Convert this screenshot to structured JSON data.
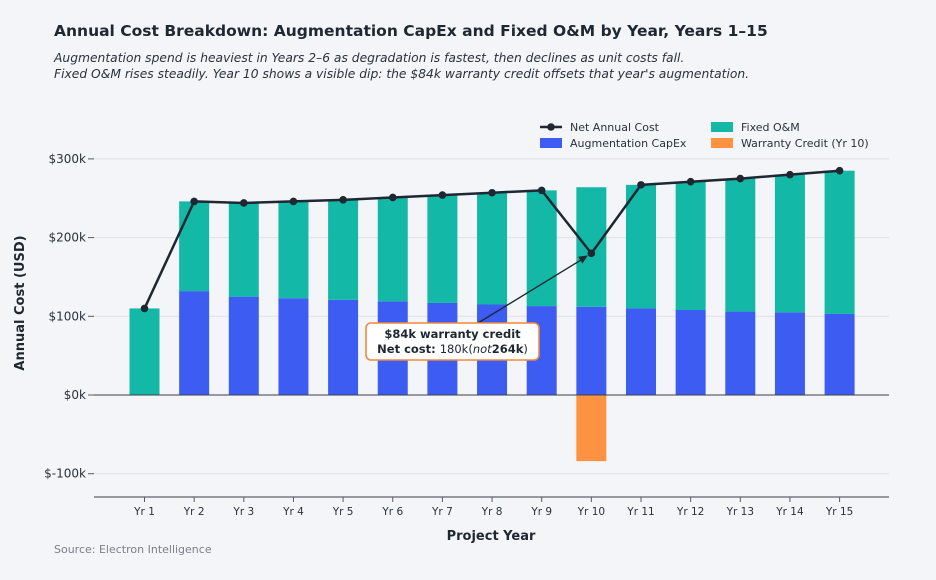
{
  "chart_data": {
    "type": "bar",
    "title": "Annual Cost Breakdown: Augmentation CapEx and Fixed O&M by Year, Years 1–15",
    "subtitle_lines": [
      "Augmentation spend is heaviest in Years 2–6 as degradation is fastest, then declines as unit costs fall.",
      "Fixed O&M rises steadily. Year 10 shows a visible dip: the $84k warranty credit offsets that year's augmentation."
    ],
    "xlabel": "Project Year",
    "ylabel": "Annual Cost (USD)",
    "ylim": [
      -130000,
      335000
    ],
    "yticks": [
      -100000,
      0,
      100000,
      200000,
      300000
    ],
    "ytick_labels": [
      "$-100k",
      "$0k",
      "$100k",
      "$200k",
      "$300k"
    ],
    "grid": true,
    "legend_position": "top-right",
    "categories": [
      "Yr 1",
      "Yr 2",
      "Yr 3",
      "Yr 4",
      "Yr 5",
      "Yr 6",
      "Yr 7",
      "Yr 8",
      "Yr 9",
      "Yr 10",
      "Yr 11",
      "Yr 12",
      "Yr 13",
      "Yr 14",
      "Yr 15"
    ],
    "series": [
      {
        "name": "Augmentation CapEx",
        "kind": "stacked-bar",
        "color": "#3d5df2",
        "values": [
          0,
          132000,
          125000,
          123000,
          121000,
          119000,
          117000,
          115000,
          113000,
          112000,
          110000,
          108000,
          106000,
          105000,
          103000
        ]
      },
      {
        "name": "Fixed O&M",
        "kind": "stacked-bar",
        "color": "#14b8a6",
        "values": [
          110000,
          114000,
          119000,
          123000,
          127000,
          132000,
          137000,
          142000,
          147000,
          152000,
          157000,
          163000,
          169000,
          175000,
          182000
        ]
      },
      {
        "name": "Warranty Credit (Yr 10)",
        "kind": "bar",
        "color": "#fd9340",
        "values": [
          0,
          0,
          0,
          0,
          0,
          0,
          0,
          0,
          0,
          -84000,
          0,
          0,
          0,
          0,
          0
        ]
      },
      {
        "name": "Net Annual Cost",
        "kind": "line",
        "color": "#1f2733",
        "values": [
          110000,
          246000,
          244000,
          246000,
          248000,
          251000,
          254000,
          257000,
          260000,
          180000,
          267000,
          271000,
          275000,
          280000,
          285000
        ]
      }
    ],
    "legend": [
      {
        "name": "Net Annual Cost",
        "kind": "line",
        "color": "#1f2733"
      },
      {
        "name": "Fixed O&M",
        "kind": "bar",
        "color": "#14b8a6"
      },
      {
        "name": "Augmentation CapEx",
        "kind": "bar",
        "color": "#3d5df2"
      },
      {
        "name": "Warranty Credit (Yr 10)",
        "kind": "bar",
        "color": "#fd9340"
      }
    ],
    "annotation": {
      "line1": "$84k warranty credit",
      "line2_label": "Net cost:",
      "line2_parts": [
        "180k(",
        "not",
        "264k",
        ")"
      ],
      "target_category": "Yr 10",
      "target_value": 180000,
      "border_color": "#ef8a3c"
    },
    "source": "Source: Electron Intelligence"
  }
}
